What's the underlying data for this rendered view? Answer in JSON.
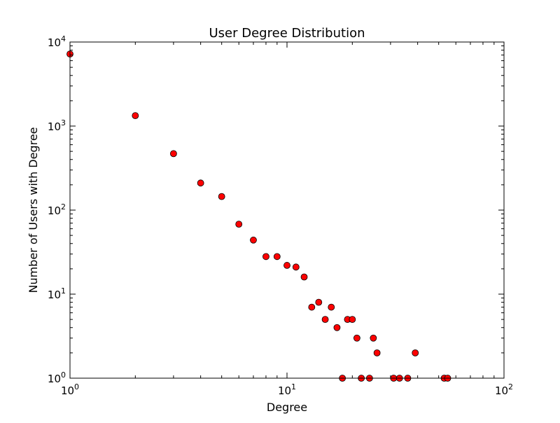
{
  "chart_data": {
    "type": "scatter",
    "title": "User Degree Distribution",
    "xlabel": "Degree",
    "ylabel": "Number of Users with Degree",
    "x_scale": "log",
    "y_scale": "log",
    "xlim": [
      1,
      100
    ],
    "ylim": [
      1,
      10000
    ],
    "x_ticks": [
      {
        "value": 1,
        "base": "10",
        "exp": "0"
      },
      {
        "value": 10,
        "base": "10",
        "exp": "1"
      },
      {
        "value": 100,
        "base": "10",
        "exp": "2"
      }
    ],
    "y_ticks": [
      {
        "value": 1,
        "base": "10",
        "exp": "0"
      },
      {
        "value": 10,
        "base": "10",
        "exp": "1"
      },
      {
        "value": 100,
        "base": "10",
        "exp": "2"
      },
      {
        "value": 1000,
        "base": "10",
        "exp": "3"
      },
      {
        "value": 10000,
        "base": "10",
        "exp": "4"
      }
    ],
    "grid": false,
    "marker_color": "#ff0000",
    "marker_edge_color": "#000000",
    "points": [
      {
        "x": 1,
        "y": 7200
      },
      {
        "x": 2,
        "y": 1330
      },
      {
        "x": 3,
        "y": 470
      },
      {
        "x": 4,
        "y": 210
      },
      {
        "x": 5,
        "y": 145
      },
      {
        "x": 6,
        "y": 68
      },
      {
        "x": 7,
        "y": 44
      },
      {
        "x": 8,
        "y": 28
      },
      {
        "x": 9,
        "y": 28
      },
      {
        "x": 10,
        "y": 22
      },
      {
        "x": 11,
        "y": 21
      },
      {
        "x": 12,
        "y": 16
      },
      {
        "x": 13,
        "y": 7
      },
      {
        "x": 14,
        "y": 8
      },
      {
        "x": 15,
        "y": 5
      },
      {
        "x": 16,
        "y": 7
      },
      {
        "x": 17,
        "y": 4
      },
      {
        "x": 18,
        "y": 1
      },
      {
        "x": 19,
        "y": 5
      },
      {
        "x": 20,
        "y": 5
      },
      {
        "x": 21,
        "y": 3
      },
      {
        "x": 22,
        "y": 1
      },
      {
        "x": 24,
        "y": 1
      },
      {
        "x": 25,
        "y": 3
      },
      {
        "x": 26,
        "y": 2
      },
      {
        "x": 31,
        "y": 1
      },
      {
        "x": 33,
        "y": 1
      },
      {
        "x": 36,
        "y": 1
      },
      {
        "x": 39,
        "y": 2
      },
      {
        "x": 53,
        "y": 1
      },
      {
        "x": 55,
        "y": 1
      }
    ]
  }
}
